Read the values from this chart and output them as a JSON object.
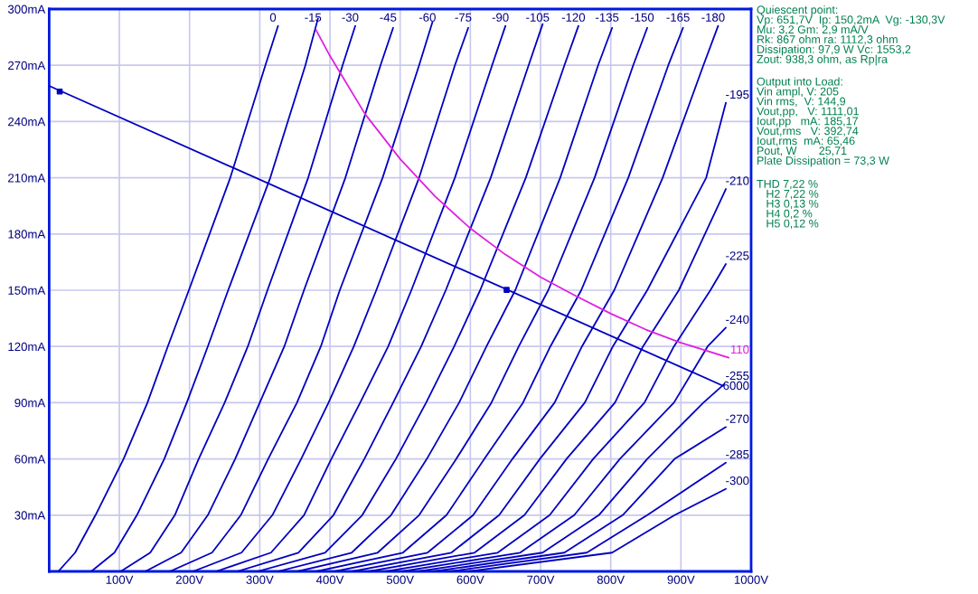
{
  "chart_data": {
    "type": "line",
    "xlim": [
      0,
      1000
    ],
    "ylim": [
      0,
      300
    ],
    "xticks": [
      {
        "value": 0,
        "label": null
      },
      {
        "value": 100,
        "label": "100V"
      },
      {
        "value": 200,
        "label": "200V"
      },
      {
        "value": 300,
        "label": "300V"
      },
      {
        "value": 400,
        "label": "400V"
      },
      {
        "value": 500,
        "label": "500V"
      },
      {
        "value": 600,
        "label": "600V"
      },
      {
        "value": 700,
        "label": "700V"
      },
      {
        "value": 800,
        "label": "800V"
      },
      {
        "value": 900,
        "label": "900V"
      },
      {
        "value": 1000,
        "label": "1000V"
      }
    ],
    "yticks": [
      {
        "value": 0,
        "label": null
      },
      {
        "value": 30,
        "label": "30mA"
      },
      {
        "value": 60,
        "label": "60mA"
      },
      {
        "value": 90,
        "label": "90mA"
      },
      {
        "value": 120,
        "label": "120mA"
      },
      {
        "value": 150,
        "label": "150mA"
      },
      {
        "value": 180,
        "label": "180mA"
      },
      {
        "value": 210,
        "label": "210mA"
      },
      {
        "value": 240,
        "label": "240mA"
      },
      {
        "value": 270,
        "label": "270mA"
      },
      {
        "value": 300,
        "label": "300mA"
      }
    ],
    "grid": true,
    "marker": "none",
    "line_style": "solid",
    "series": [
      {
        "name": "0",
        "color": "#0000c0",
        "x": [
          13,
          37,
          66,
          106,
          140,
          169,
          199,
          258,
          308,
          326
        ],
        "values": [
          0,
          10,
          30,
          60,
          90,
          120,
          150,
          210,
          270,
          291
        ]
      },
      {
        "name": "-15",
        "color": "#0000c0",
        "x": [
          60,
          93,
          125,
          164,
          196,
          226,
          255,
          315,
          365,
          383
        ],
        "values": [
          0,
          10,
          30,
          60,
          90,
          120,
          150,
          210,
          270,
          295
        ]
      },
      {
        "name": "-30",
        "color": "#0000c0",
        "x": [
          102,
          144,
          179,
          213,
          250,
          283,
          311,
          369,
          418,
          436
        ],
        "values": [
          0,
          10,
          30,
          60,
          90,
          120,
          150,
          210,
          270,
          291
        ]
      },
      {
        "name": "-45",
        "color": "#0000c0",
        "x": [
          137,
          188,
          226,
          265,
          300,
          335,
          363,
          422,
          472,
          490
        ],
        "values": [
          0,
          10,
          30,
          60,
          90,
          120,
          150,
          210,
          270,
          290
        ]
      },
      {
        "name": "-60",
        "color": "#0000c0",
        "x": [
          172,
          232,
          273,
          312,
          353,
          387,
          414,
          475,
          527,
          546
        ],
        "values": [
          0,
          10,
          30,
          60,
          90,
          120,
          150,
          210,
          270,
          293
        ]
      },
      {
        "name": "-75",
        "color": "#0000c0",
        "x": [
          205,
          274,
          318,
          359,
          398,
          434,
          466,
          527,
          578,
          597
        ],
        "values": [
          0,
          10,
          30,
          60,
          90,
          120,
          150,
          210,
          270,
          290
        ]
      },
      {
        "name": "-90",
        "color": "#0000c0",
        "x": [
          238,
          316,
          363,
          402,
          443,
          483,
          516,
          578,
          631,
          650
        ],
        "values": [
          0,
          10,
          30,
          60,
          90,
          120,
          150,
          210,
          270,
          291
        ]
      },
      {
        "name": "-105",
        "color": "#0000c0",
        "x": [
          268,
          355,
          405,
          449,
          490,
          530,
          565,
          629,
          683,
          703
        ],
        "values": [
          0,
          10,
          30,
          60,
          90,
          120,
          150,
          210,
          270,
          292
        ]
      },
      {
        "name": "-120",
        "color": "#0000c0",
        "x": [
          297,
          393,
          446,
          494,
          537,
          577,
          614,
          679,
          734,
          754
        ],
        "values": [
          0,
          10,
          30,
          60,
          90,
          120,
          150,
          210,
          270,
          291
        ]
      },
      {
        "name": "-135",
        "color": "#0000c0",
        "x": [
          326,
          431,
          487,
          538,
          584,
          623,
          664,
          728,
          782,
          802
        ],
        "values": [
          0,
          10,
          30,
          60,
          90,
          120,
          150,
          210,
          270,
          290
        ]
      },
      {
        "name": "-150",
        "color": "#0000c0",
        "x": [
          354,
          468,
          527,
          580,
          630,
          669,
          711,
          777,
          832,
          852
        ],
        "values": [
          0,
          10,
          30,
          60,
          90,
          120,
          150,
          210,
          270,
          290
        ]
      },
      {
        "name": "-165",
        "color": "#0000c0",
        "x": [
          381,
          504,
          566,
          620,
          675,
          714,
          758,
          825,
          882,
          903
        ],
        "values": [
          0,
          10,
          30,
          60,
          90,
          120,
          150,
          210,
          270,
          290
        ]
      },
      {
        "name": "-180",
        "color": "#0000c0",
        "x": [
          407,
          539,
          604,
          660,
          720,
          759,
          805,
          874,
          932,
          953
        ],
        "values": [
          0,
          10,
          30,
          60,
          90,
          120,
          150,
          210,
          270,
          291
        ]
      },
      {
        "name": "-195",
        "color": "#0000c0",
        "x": [
          432,
          573,
          641,
          699,
          763,
          803,
          852,
          936,
          964
        ],
        "values": [
          0,
          10,
          30,
          60,
          90,
          120,
          150,
          210,
          250
        ]
      },
      {
        "name": "-210",
        "color": "#0000c0",
        "x": [
          456,
          606,
          677,
          737,
          806,
          846,
          897,
          964
        ],
        "values": [
          0,
          10,
          30,
          60,
          90,
          120,
          150,
          204
        ]
      },
      {
        "name": "-225",
        "color": "#0000c0",
        "x": [
          480,
          639,
          713,
          775,
          848,
          890,
          942,
          964
        ],
        "values": [
          0,
          10,
          30,
          60,
          90,
          120,
          150,
          164
        ]
      },
      {
        "name": "-240",
        "color": "#0000c0",
        "x": [
          503,
          671,
          748,
          813,
          890,
          938,
          964
        ],
        "values": [
          0,
          10,
          30,
          60,
          90,
          120,
          130
        ]
      },
      {
        "name": "-255",
        "color": "#0000c0",
        "x": [
          526,
          703,
          783,
          852,
          932,
          962
        ],
        "values": [
          0,
          10,
          30,
          60,
          90,
          100
        ]
      },
      {
        "name": "-270",
        "color": "#0000c0",
        "x": [
          548,
          734,
          817,
          891,
          964
        ],
        "values": [
          0,
          10,
          30,
          60,
          77
        ]
      },
      {
        "name": "-285",
        "color": "#0000c0",
        "x": [
          571,
          766,
          852,
          964
        ],
        "values": [
          0,
          10,
          30,
          58
        ]
      },
      {
        "name": "-300",
        "color": "#0000c0",
        "x": [
          598,
          802,
          891,
          964
        ],
        "values": [
          0,
          10,
          30,
          44
        ]
      },
      {
        "name": "6000",
        "color": "#0000c0",
        "x": [
          0,
          960
        ],
        "values": [
          259,
          99
        ]
      },
      {
        "name": "110",
        "color": "#e020e0",
        "x": [
          380,
          400,
          450,
          500,
          550,
          600,
          650,
          700,
          750,
          800,
          850,
          900,
          968
        ],
        "values": [
          289,
          275,
          244,
          220,
          200,
          183,
          169,
          157,
          147,
          137.5,
          129,
          122,
          114
        ]
      },
      {
        "type": "scatter",
        "marker": "square",
        "color": "#0000c0",
        "x": [
          15,
          651.7
        ],
        "values": [
          256,
          150.2
        ]
      }
    ],
    "annotations": [
      "Quiescent point:\nVp: 651,7V  Ip: 150,2mA  Vg: -130,3V\nMu: 3,2 Gm: 2,9 mA/V\nRk: 867 ohm ra: 1112,3 ohm\nDissipation: 97,9 W Vc: 1553,2\nZout: 938,3 ohm, as Rp|ra",
      "Output into Load:\nVin ampl, V: 205\nVin rms,  V: 144,9\nVout,pp,   V: 1111,01\nIout,pp   mA: 185,17\nVout,rms   V: 392,74\nIout,rms  mA: 65,46\nPout, W       25,71\nPlate Dissipation = 73,3 W",
      "THD 7,22 %\n   H2 7,22 %\n   H3 0,13 %\n   H4 0,2 %\n   H5 0,12 %"
    ]
  }
}
